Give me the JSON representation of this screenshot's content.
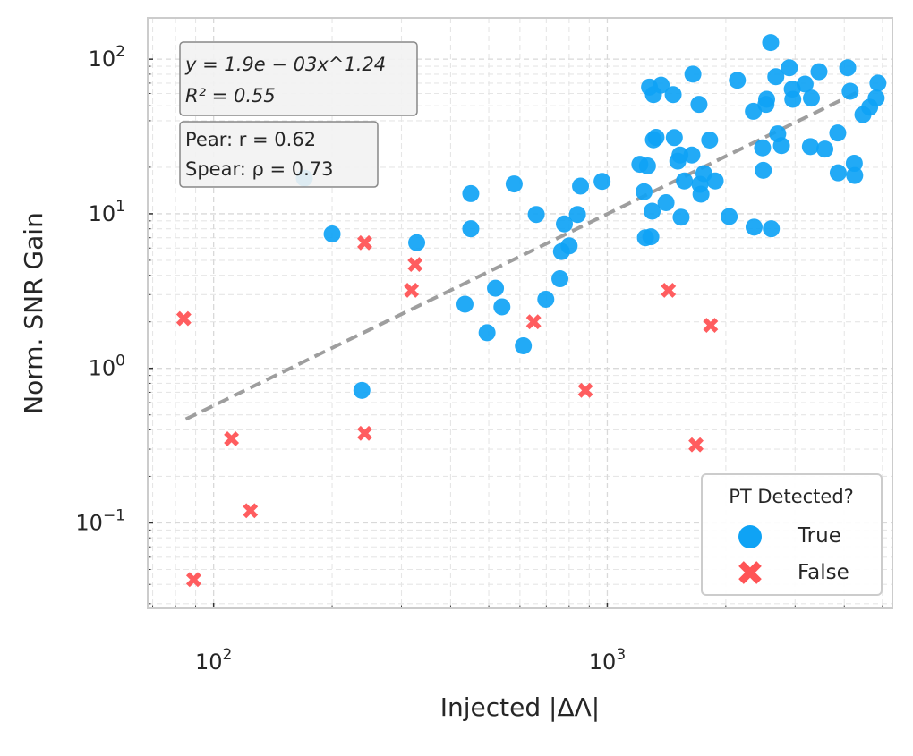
{
  "chart_data": {
    "type": "scatter",
    "xlabel": "Injected |ΔΛ|",
    "ylabel": "Norm. SNR Gain",
    "xscale": "log",
    "yscale": "log",
    "xlim": [
      68,
      5300
    ],
    "ylim": [
      0.028,
      185
    ],
    "grid": true,
    "x_ticks": [
      {
        "value": 100,
        "base": "10",
        "exp": "2"
      },
      {
        "value": 1000,
        "base": "10",
        "exp": "3"
      }
    ],
    "y_ticks": [
      {
        "value": 0.1,
        "base": "10",
        "exp": "−1"
      },
      {
        "value": 1,
        "base": "10",
        "exp": "0"
      },
      {
        "value": 10,
        "base": "10",
        "exp": "1"
      },
      {
        "value": 100,
        "base": "10",
        "exp": "2"
      }
    ],
    "fit": {
      "equation_lines": [
        "y = 1.9e − 03x^1.24",
        "R² = 0.55"
      ],
      "coef": 0.0019,
      "exponent": 1.24,
      "x_range": [
        85,
        4300
      ],
      "color": "#9e9e9e"
    },
    "correlations": [
      "Pear: r = 0.62",
      "Spear: ρ = 0.73"
    ],
    "legend": {
      "title": "PT Detected?",
      "position": "lower-right",
      "entries": [
        {
          "label": "True",
          "marker": "circle",
          "color": "#0fa3f5"
        },
        {
          "label": "False",
          "marker": "x",
          "color": "#ff5456"
        }
      ]
    },
    "series": [
      {
        "name": "True",
        "marker": "circle",
        "color": "#0fa3f5",
        "points": [
          [
            170,
            17
          ],
          [
            200,
            7.4
          ],
          [
            238,
            0.72
          ],
          [
            328,
            6.5
          ],
          [
            435,
            2.6
          ],
          [
            450,
            8.0
          ],
          [
            450,
            13.5
          ],
          [
            495,
            1.7
          ],
          [
            520,
            3.3
          ],
          [
            540,
            2.5
          ],
          [
            580,
            15.6
          ],
          [
            612,
            1.4
          ],
          [
            660,
            9.9
          ],
          [
            698,
            2.8
          ],
          [
            758,
            3.8
          ],
          [
            765,
            5.7
          ],
          [
            778,
            8.6
          ],
          [
            800,
            6.2
          ],
          [
            840,
            9.9
          ],
          [
            855,
            15.1
          ],
          [
            970,
            16.2
          ],
          [
            1210,
            20.9
          ],
          [
            1250,
            7.0
          ],
          [
            1265,
            20.4
          ],
          [
            1240,
            13.9
          ],
          [
            1280,
            66
          ],
          [
            1290,
            7.1
          ],
          [
            1310,
            30.1
          ],
          [
            1300,
            10.4
          ],
          [
            1310,
            59
          ],
          [
            1330,
            31.2
          ],
          [
            1370,
            68
          ],
          [
            1410,
            11.8
          ],
          [
            1480,
            31.1
          ],
          [
            1470,
            59
          ],
          [
            1510,
            21.9
          ],
          [
            1530,
            24
          ],
          [
            1540,
            9.5
          ],
          [
            1570,
            16.3
          ],
          [
            1640,
            24
          ],
          [
            1650,
            80
          ],
          [
            1730,
            13.4
          ],
          [
            1710,
            51
          ],
          [
            1720,
            15.5
          ],
          [
            1760,
            18.2
          ],
          [
            1820,
            30
          ],
          [
            1880,
            16.3
          ],
          [
            2040,
            9.6
          ],
          [
            2140,
            73
          ],
          [
            2350,
            46
          ],
          [
            2360,
            8.2
          ],
          [
            2490,
            19.1
          ],
          [
            2480,
            26.7
          ],
          [
            2540,
            55
          ],
          [
            2530,
            51
          ],
          [
            2610,
            8.0
          ],
          [
            2600,
            128
          ],
          [
            2680,
            77
          ],
          [
            2710,
            32.9
          ],
          [
            2770,
            27.6
          ],
          [
            2900,
            88
          ],
          [
            2950,
            64
          ],
          [
            2960,
            55
          ],
          [
            3180,
            69
          ],
          [
            3280,
            27.2
          ],
          [
            3300,
            56
          ],
          [
            3450,
            83
          ],
          [
            3570,
            26.2
          ],
          [
            3850,
            33.3
          ],
          [
            3860,
            18.4
          ],
          [
            4080,
            88
          ],
          [
            4140,
            62
          ],
          [
            4250,
            17.7
          ],
          [
            4240,
            21.2
          ],
          [
            4460,
            43.8
          ],
          [
            4640,
            48.9
          ],
          [
            4820,
            56
          ],
          [
            4870,
            70
          ]
        ]
      },
      {
        "name": "False",
        "marker": "x",
        "color": "#ff5456",
        "points": [
          [
            84,
            2.1
          ],
          [
            89,
            0.043
          ],
          [
            111,
            0.35
          ],
          [
            124,
            0.12
          ],
          [
            242,
            0.38
          ],
          [
            242,
            6.5
          ],
          [
            318,
            3.2
          ],
          [
            325,
            4.7
          ],
          [
            650,
            2.0
          ],
          [
            880,
            0.72
          ],
          [
            1430,
            3.2
          ],
          [
            1680,
            0.32
          ],
          [
            1830,
            1.9
          ]
        ]
      }
    ]
  }
}
